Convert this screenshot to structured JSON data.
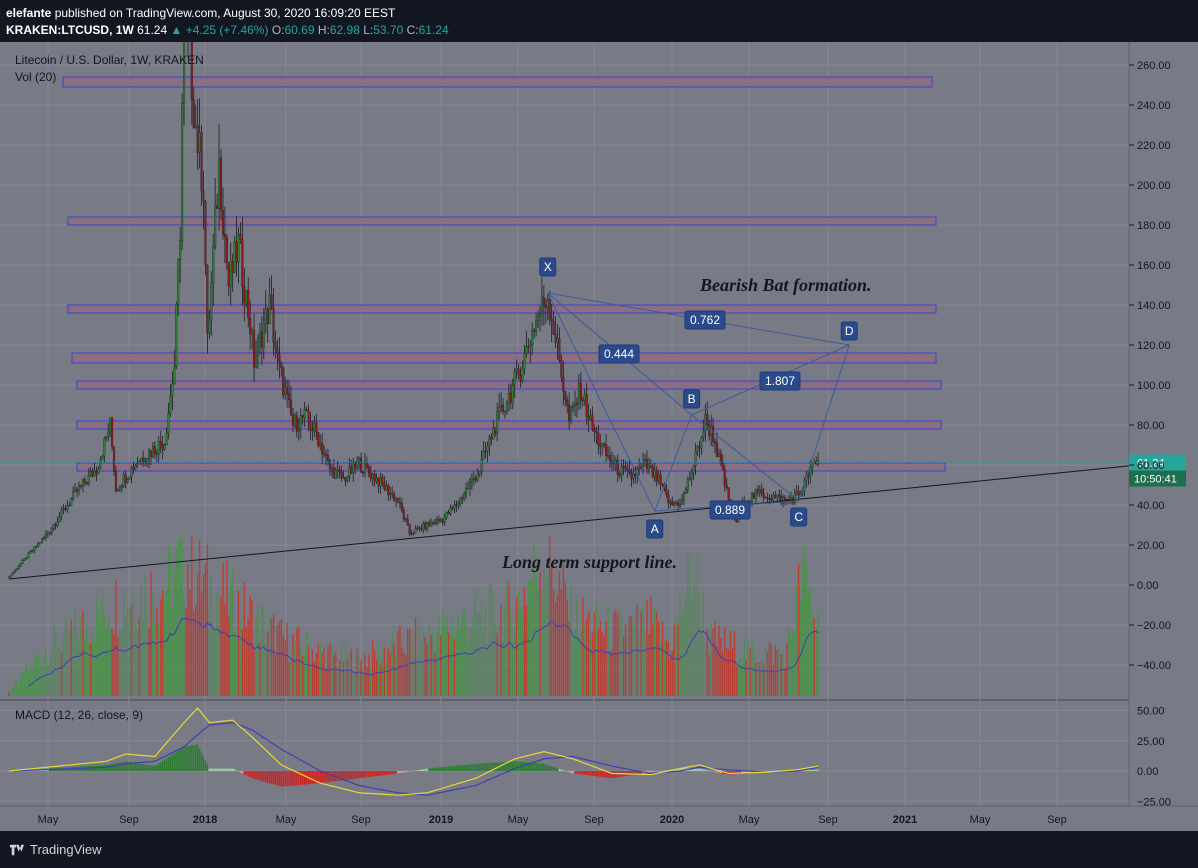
{
  "header": {
    "author": "elefante",
    "published_text": "published on TradingView.com, August 30, 2020 16:09:20 EEST",
    "symbol_line": "KRAKEN:LTCUSD, 1W",
    "last": "61.24",
    "change": "+4.25 (+7.46%)",
    "o_label": "O:",
    "o": "60.69",
    "h_label": "H:",
    "h": "62.98",
    "l_label": "L:",
    "l": "53.70",
    "c_label": "C:",
    "c": "61.24"
  },
  "legend": {
    "title": "Litecoin / U.S. Dollar, 1W, KRAKEN",
    "vol": "Vol (20)",
    "macd": "MACD (12, 26, close, 9)"
  },
  "price_badge": "61.24",
  "countdown_badge": "10:50:41",
  "annotations": {
    "pattern_title": "Bearish Bat formation.",
    "support_label": "Long term support line.",
    "points": [
      "X",
      "A",
      "B",
      "C",
      "D"
    ],
    "ratios": [
      "0.444",
      "0.762",
      "1.807",
      "0.889"
    ]
  },
  "footer": {
    "brand": "TradingView"
  },
  "colors": {
    "background": "#787b86",
    "up": "#26a69a",
    "down": "#ef5350",
    "zone_fill": "#8a6f80",
    "zone_stroke": "#3a3fd6",
    "pattern": "#3d5a99",
    "ma_line": "#3f3fb0",
    "macd_line": "#e8d63a",
    "signal_line": "#3f3fb0"
  },
  "chart_data": {
    "type": "candlestick",
    "title": "Litecoin / U.S. Dollar, 1W, KRAKEN",
    "price_axis_ticks": [
      260,
      240,
      220,
      200,
      180,
      160,
      140,
      120,
      100,
      80,
      60,
      40,
      20,
      0,
      -20,
      -40
    ],
    "price_axis_labels": [
      "260.00",
      "240.00",
      "220.00",
      "200.00",
      "180.00",
      "160.00",
      "140.00",
      "120.00",
      "100.00",
      "80.00",
      "60.00",
      "40.00",
      "20.00",
      "0.00",
      "−20.00",
      "−40.00"
    ],
    "macd_axis_ticks": [
      50,
      25,
      0,
      -25
    ],
    "macd_axis_labels": [
      "50.00",
      "25.00",
      "0.00",
      "−25.00"
    ],
    "time_axis_labels": [
      "May",
      "Sep",
      "2018",
      "May",
      "Sep",
      "2019",
      "May",
      "Sep",
      "2020",
      "May",
      "Sep",
      "2021",
      "May",
      "Sep"
    ],
    "time_axis_bold": [
      false,
      false,
      true,
      false,
      false,
      true,
      false,
      false,
      true,
      false,
      false,
      true,
      false,
      false
    ],
    "zones": [
      [
        254,
        249
      ],
      [
        184,
        180
      ],
      [
        140,
        136
      ],
      [
        116,
        111
      ],
      [
        102,
        98
      ],
      [
        82,
        78
      ],
      [
        61,
        57
      ]
    ],
    "price_path": [
      [
        0,
        4
      ],
      [
        20,
        26
      ],
      [
        35,
        47
      ],
      [
        45,
        58
      ],
      [
        52,
        80
      ],
      [
        55,
        48
      ],
      [
        66,
        62
      ],
      [
        80,
        72
      ],
      [
        85,
        110
      ],
      [
        88,
        180
      ],
      [
        90,
        300
      ],
      [
        96,
        230
      ],
      [
        100,
        200
      ],
      [
        102,
        120
      ],
      [
        108,
        210
      ],
      [
        113,
        150
      ],
      [
        118,
        170
      ],
      [
        124,
        130
      ],
      [
        126,
        112
      ],
      [
        134,
        140
      ],
      [
        138,
        112
      ],
      [
        146,
        80
      ],
      [
        152,
        84
      ],
      [
        158,
        76
      ],
      [
        165,
        58
      ],
      [
        172,
        53
      ],
      [
        180,
        61
      ],
      [
        190,
        52
      ],
      [
        200,
        42
      ],
      [
        206,
        26
      ],
      [
        215,
        30
      ],
      [
        223,
        33
      ],
      [
        230,
        40
      ],
      [
        242,
        58
      ],
      [
        250,
        80
      ],
      [
        262,
        105
      ],
      [
        270,
        130
      ],
      [
        277,
        145
      ],
      [
        282,
        118
      ],
      [
        288,
        82
      ],
      [
        294,
        98
      ],
      [
        300,
        78
      ],
      [
        307,
        65
      ],
      [
        313,
        58
      ],
      [
        320,
        54
      ],
      [
        327,
        60
      ],
      [
        334,
        52
      ],
      [
        340,
        40
      ],
      [
        346,
        42
      ],
      [
        352,
        60
      ],
      [
        358,
        82
      ],
      [
        362,
        75
      ],
      [
        367,
        55
      ],
      [
        371,
        38
      ],
      [
        374,
        32
      ],
      [
        378,
        42
      ],
      [
        386,
        46
      ],
      [
        393,
        44
      ],
      [
        400,
        42
      ],
      [
        407,
        46
      ],
      [
        412,
        58
      ],
      [
        416,
        61
      ]
    ],
    "volume_path": [
      [
        0,
        0.02
      ],
      [
        20,
        0.35
      ],
      [
        40,
        0.5
      ],
      [
        60,
        0.7
      ],
      [
        80,
        0.75
      ],
      [
        90,
        0.95
      ],
      [
        100,
        0.8
      ],
      [
        120,
        0.6
      ],
      [
        140,
        0.4
      ],
      [
        160,
        0.3
      ],
      [
        180,
        0.25
      ],
      [
        200,
        0.35
      ],
      [
        220,
        0.45
      ],
      [
        240,
        0.55
      ],
      [
        260,
        0.6
      ],
      [
        275,
        1.0
      ],
      [
        290,
        0.55
      ],
      [
        310,
        0.45
      ],
      [
        330,
        0.5
      ],
      [
        340,
        0.35
      ],
      [
        352,
        0.9
      ],
      [
        360,
        0.4
      ],
      [
        380,
        0.3
      ],
      [
        400,
        0.3
      ],
      [
        408,
        0.85
      ],
      [
        416,
        0.5
      ]
    ],
    "support_line": [
      [
        0,
        3
      ],
      [
        560,
        58
      ]
    ],
    "pattern": {
      "X": [
        277,
        146
      ],
      "A": [
        332,
        37
      ],
      "B": [
        351,
        85
      ],
      "C": [
        406,
        42
      ],
      "D": [
        432,
        120
      ]
    },
    "last_close": 61.24
  }
}
